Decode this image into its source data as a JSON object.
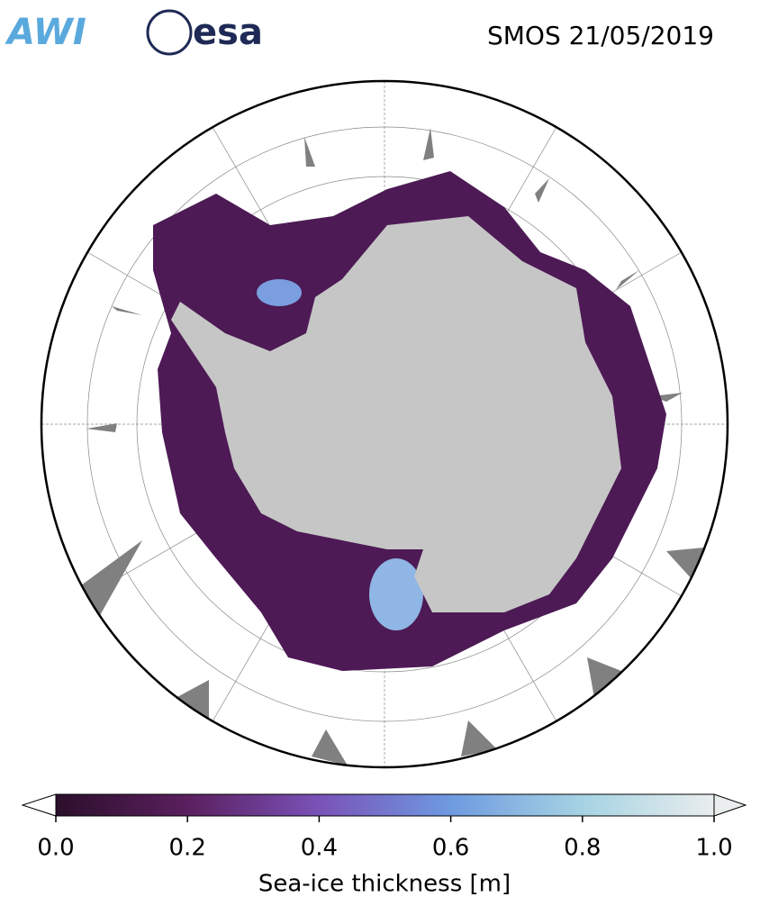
{
  "header": {
    "logo_left": "AWI",
    "logo_right": "esa",
    "title": "SMOS 21/05/2019"
  },
  "colorbar": {
    "label": "Sea-ice thickness [m]",
    "lim": [
      0,
      1
    ],
    "ticks": [
      {
        "value": 0,
        "label": "0.0"
      },
      {
        "value": 0.2,
        "label": "0.2"
      },
      {
        "value": 0.4,
        "label": "0.4"
      },
      {
        "value": 0.6,
        "label": "0.6"
      },
      {
        "value": 0.8,
        "label": "0.8"
      },
      {
        "value": 1,
        "label": "1.0"
      }
    ],
    "colors": [
      "#2b0f2b",
      "#5a1f5e",
      "#7a52b8",
      "#6e9ae0",
      "#a6d3e3",
      "#e9eded"
    ]
  }
}
